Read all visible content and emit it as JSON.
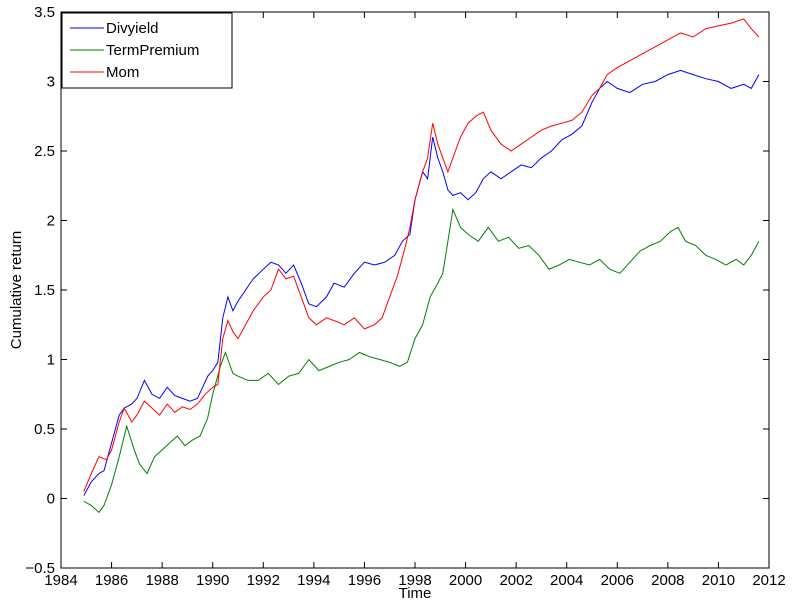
{
  "chart_data": {
    "type": "line",
    "xlabel": "Time",
    "ylabel": "Cumulative return",
    "xlim": [
      1984,
      2012
    ],
    "ylim": [
      -0.5,
      3.5
    ],
    "xticks": [
      "1984",
      "1986",
      "1988",
      "1990",
      "1992",
      "1994",
      "1996",
      "1998",
      "2000",
      "2002",
      "2004",
      "2006",
      "2008",
      "2010",
      "2012"
    ],
    "yticks": [
      "−0.5",
      "0",
      "0.5",
      "1",
      "1.5",
      "2",
      "2.5",
      "3",
      "3.5"
    ],
    "legend_position": "top-left",
    "grid": false,
    "series": [
      {
        "name": "Divyield",
        "color": "#0000ff",
        "points": [
          [
            1984.9,
            0.02
          ],
          [
            1985.2,
            0.12
          ],
          [
            1985.5,
            0.18
          ],
          [
            1985.7,
            0.2
          ],
          [
            1986.0,
            0.4
          ],
          [
            1986.3,
            0.6
          ],
          [
            1986.5,
            0.65
          ],
          [
            1986.8,
            0.68
          ],
          [
            1987.0,
            0.72
          ],
          [
            1987.3,
            0.85
          ],
          [
            1987.6,
            0.75
          ],
          [
            1987.9,
            0.72
          ],
          [
            1988.2,
            0.8
          ],
          [
            1988.5,
            0.74
          ],
          [
            1988.8,
            0.72
          ],
          [
            1989.1,
            0.7
          ],
          [
            1989.4,
            0.72
          ],
          [
            1989.6,
            0.8
          ],
          [
            1989.8,
            0.88
          ],
          [
            1990.0,
            0.92
          ],
          [
            1990.2,
            0.98
          ],
          [
            1990.4,
            1.3
          ],
          [
            1990.6,
            1.45
          ],
          [
            1990.8,
            1.35
          ],
          [
            1991.0,
            1.42
          ],
          [
            1991.3,
            1.5
          ],
          [
            1991.6,
            1.58
          ],
          [
            1992.0,
            1.65
          ],
          [
            1992.3,
            1.7
          ],
          [
            1992.6,
            1.68
          ],
          [
            1992.9,
            1.62
          ],
          [
            1993.2,
            1.68
          ],
          [
            1993.5,
            1.55
          ],
          [
            1993.8,
            1.4
          ],
          [
            1994.1,
            1.38
          ],
          [
            1994.5,
            1.45
          ],
          [
            1994.8,
            1.55
          ],
          [
            1995.2,
            1.52
          ],
          [
            1995.6,
            1.62
          ],
          [
            1996.0,
            1.7
          ],
          [
            1996.4,
            1.68
          ],
          [
            1996.8,
            1.7
          ],
          [
            1997.2,
            1.75
          ],
          [
            1997.5,
            1.85
          ],
          [
            1997.8,
            1.9
          ],
          [
            1998.0,
            2.15
          ],
          [
            1998.3,
            2.35
          ],
          [
            1998.5,
            2.3
          ],
          [
            1998.7,
            2.6
          ],
          [
            1998.9,
            2.45
          ],
          [
            1999.1,
            2.35
          ],
          [
            1999.3,
            2.22
          ],
          [
            1999.5,
            2.18
          ],
          [
            1999.8,
            2.2
          ],
          [
            2000.1,
            2.15
          ],
          [
            2000.4,
            2.2
          ],
          [
            2000.7,
            2.3
          ],
          [
            2001.0,
            2.35
          ],
          [
            2001.4,
            2.3
          ],
          [
            2001.8,
            2.35
          ],
          [
            2002.2,
            2.4
          ],
          [
            2002.6,
            2.38
          ],
          [
            2003.0,
            2.45
          ],
          [
            2003.4,
            2.5
          ],
          [
            2003.8,
            2.58
          ],
          [
            2004.2,
            2.62
          ],
          [
            2004.6,
            2.68
          ],
          [
            2005.0,
            2.85
          ],
          [
            2005.3,
            2.95
          ],
          [
            2005.6,
            3.0
          ],
          [
            2006.0,
            2.95
          ],
          [
            2006.5,
            2.92
          ],
          [
            2007.0,
            2.98
          ],
          [
            2007.5,
            3.0
          ],
          [
            2008.0,
            3.05
          ],
          [
            2008.5,
            3.08
          ],
          [
            2009.0,
            3.05
          ],
          [
            2009.5,
            3.02
          ],
          [
            2010.0,
            3.0
          ],
          [
            2010.5,
            2.95
          ],
          [
            2011.0,
            2.98
          ],
          [
            2011.3,
            2.95
          ],
          [
            2011.6,
            3.05
          ]
        ]
      },
      {
        "name": "TermPremium",
        "color": "#007f00",
        "points": [
          [
            1984.9,
            -0.02
          ],
          [
            1985.2,
            -0.05
          ],
          [
            1985.5,
            -0.1
          ],
          [
            1985.7,
            -0.05
          ],
          [
            1986.0,
            0.1
          ],
          [
            1986.3,
            0.3
          ],
          [
            1986.6,
            0.52
          ],
          [
            1986.9,
            0.35
          ],
          [
            1987.1,
            0.25
          ],
          [
            1987.4,
            0.18
          ],
          [
            1987.7,
            0.3
          ],
          [
            1988.0,
            0.35
          ],
          [
            1988.3,
            0.4
          ],
          [
            1988.6,
            0.45
          ],
          [
            1988.9,
            0.38
          ],
          [
            1989.2,
            0.42
          ],
          [
            1989.5,
            0.45
          ],
          [
            1989.8,
            0.58
          ],
          [
            1990.0,
            0.75
          ],
          [
            1990.3,
            0.95
          ],
          [
            1990.5,
            1.05
          ],
          [
            1990.8,
            0.9
          ],
          [
            1991.0,
            0.88
          ],
          [
            1991.4,
            0.85
          ],
          [
            1991.8,
            0.85
          ],
          [
            1992.2,
            0.9
          ],
          [
            1992.6,
            0.82
          ],
          [
            1993.0,
            0.88
          ],
          [
            1993.4,
            0.9
          ],
          [
            1993.8,
            1.0
          ],
          [
            1994.2,
            0.92
          ],
          [
            1994.6,
            0.95
          ],
          [
            1995.0,
            0.98
          ],
          [
            1995.4,
            1.0
          ],
          [
            1995.8,
            1.05
          ],
          [
            1996.2,
            1.02
          ],
          [
            1996.6,
            1.0
          ],
          [
            1997.0,
            0.98
          ],
          [
            1997.4,
            0.95
          ],
          [
            1997.7,
            0.98
          ],
          [
            1998.0,
            1.15
          ],
          [
            1998.3,
            1.25
          ],
          [
            1998.6,
            1.45
          ],
          [
            1998.9,
            1.55
          ],
          [
            1999.1,
            1.62
          ],
          [
            1999.3,
            1.85
          ],
          [
            1999.5,
            2.08
          ],
          [
            1999.8,
            1.95
          ],
          [
            2000.1,
            1.9
          ],
          [
            2000.5,
            1.85
          ],
          [
            2000.9,
            1.95
          ],
          [
            2001.3,
            1.85
          ],
          [
            2001.7,
            1.88
          ],
          [
            2002.1,
            1.8
          ],
          [
            2002.5,
            1.82
          ],
          [
            2002.9,
            1.75
          ],
          [
            2003.3,
            1.65
          ],
          [
            2003.7,
            1.68
          ],
          [
            2004.1,
            1.72
          ],
          [
            2004.5,
            1.7
          ],
          [
            2004.9,
            1.68
          ],
          [
            2005.3,
            1.72
          ],
          [
            2005.7,
            1.65
          ],
          [
            2006.1,
            1.62
          ],
          [
            2006.5,
            1.7
          ],
          [
            2006.9,
            1.78
          ],
          [
            2007.3,
            1.82
          ],
          [
            2007.7,
            1.85
          ],
          [
            2008.1,
            1.92
          ],
          [
            2008.4,
            1.95
          ],
          [
            2008.7,
            1.85
          ],
          [
            2009.1,
            1.82
          ],
          [
            2009.5,
            1.75
          ],
          [
            2009.9,
            1.72
          ],
          [
            2010.3,
            1.68
          ],
          [
            2010.7,
            1.72
          ],
          [
            2011.0,
            1.68
          ],
          [
            2011.3,
            1.75
          ],
          [
            2011.6,
            1.85
          ]
        ]
      },
      {
        "name": "Mom",
        "color": "#ff0000",
        "points": [
          [
            1984.9,
            0.05
          ],
          [
            1985.2,
            0.18
          ],
          [
            1985.5,
            0.3
          ],
          [
            1985.8,
            0.28
          ],
          [
            1986.0,
            0.35
          ],
          [
            1986.3,
            0.55
          ],
          [
            1986.5,
            0.65
          ],
          [
            1986.8,
            0.55
          ],
          [
            1987.0,
            0.6
          ],
          [
            1987.3,
            0.7
          ],
          [
            1987.6,
            0.65
          ],
          [
            1987.9,
            0.6
          ],
          [
            1988.2,
            0.68
          ],
          [
            1988.5,
            0.62
          ],
          [
            1988.8,
            0.66
          ],
          [
            1989.1,
            0.64
          ],
          [
            1989.4,
            0.68
          ],
          [
            1989.7,
            0.75
          ],
          [
            1990.0,
            0.8
          ],
          [
            1990.2,
            0.82
          ],
          [
            1990.4,
            1.15
          ],
          [
            1990.6,
            1.28
          ],
          [
            1990.8,
            1.2
          ],
          [
            1991.0,
            1.15
          ],
          [
            1991.3,
            1.25
          ],
          [
            1991.6,
            1.35
          ],
          [
            1992.0,
            1.45
          ],
          [
            1992.3,
            1.5
          ],
          [
            1992.6,
            1.65
          ],
          [
            1992.9,
            1.58
          ],
          [
            1993.2,
            1.6
          ],
          [
            1993.5,
            1.45
          ],
          [
            1993.8,
            1.3
          ],
          [
            1994.1,
            1.25
          ],
          [
            1994.5,
            1.3
          ],
          [
            1994.8,
            1.28
          ],
          [
            1995.2,
            1.25
          ],
          [
            1995.6,
            1.3
          ],
          [
            1996.0,
            1.22
          ],
          [
            1996.4,
            1.25
          ],
          [
            1996.7,
            1.3
          ],
          [
            1997.0,
            1.45
          ],
          [
            1997.3,
            1.6
          ],
          [
            1997.6,
            1.8
          ],
          [
            1997.8,
            1.95
          ],
          [
            1998.0,
            2.15
          ],
          [
            1998.3,
            2.35
          ],
          [
            1998.5,
            2.45
          ],
          [
            1998.7,
            2.7
          ],
          [
            1998.9,
            2.55
          ],
          [
            1999.1,
            2.45
          ],
          [
            1999.3,
            2.35
          ],
          [
            1999.5,
            2.45
          ],
          [
            1999.8,
            2.6
          ],
          [
            2000.1,
            2.7
          ],
          [
            2000.4,
            2.75
          ],
          [
            2000.7,
            2.78
          ],
          [
            2001.0,
            2.65
          ],
          [
            2001.4,
            2.55
          ],
          [
            2001.8,
            2.5
          ],
          [
            2002.2,
            2.55
          ],
          [
            2002.6,
            2.6
          ],
          [
            2003.0,
            2.65
          ],
          [
            2003.4,
            2.68
          ],
          [
            2003.8,
            2.7
          ],
          [
            2004.2,
            2.72
          ],
          [
            2004.6,
            2.78
          ],
          [
            2005.0,
            2.9
          ],
          [
            2005.3,
            2.95
          ],
          [
            2005.6,
            3.05
          ],
          [
            2006.0,
            3.1
          ],
          [
            2006.5,
            3.15
          ],
          [
            2007.0,
            3.2
          ],
          [
            2007.5,
            3.25
          ],
          [
            2008.0,
            3.3
          ],
          [
            2008.5,
            3.35
          ],
          [
            2009.0,
            3.32
          ],
          [
            2009.5,
            3.38
          ],
          [
            2010.0,
            3.4
          ],
          [
            2010.5,
            3.42
          ],
          [
            2011.0,
            3.45
          ],
          [
            2011.3,
            3.38
          ],
          [
            2011.6,
            3.32
          ]
        ]
      }
    ]
  }
}
